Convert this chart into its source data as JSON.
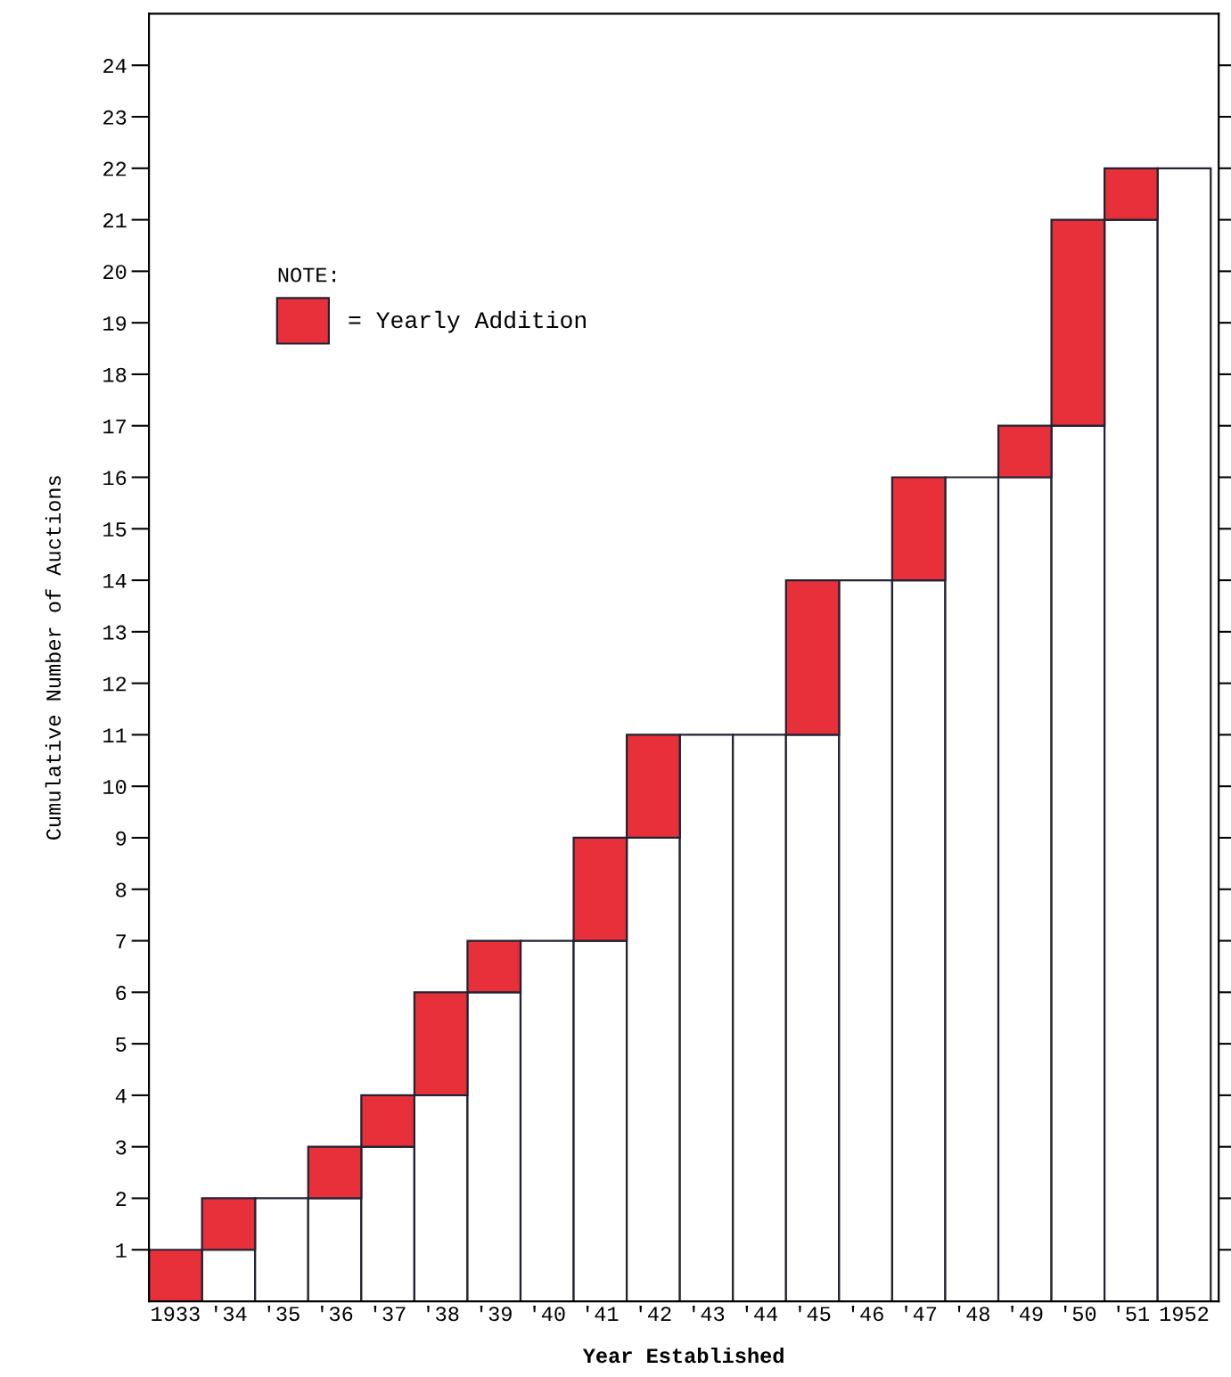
{
  "chart_data": {
    "type": "bar",
    "stacked": true,
    "xlabel": "Year Established",
    "ylabel": "Cumulative Number of Auctions",
    "legend_title": "NOTE:",
    "legend": "top left",
    "grid": false,
    "categories": [
      "1933",
      "'34",
      "'35",
      "'36",
      "'37",
      "'38",
      "'39",
      "'40",
      "'41",
      "'42",
      "'43",
      "'44",
      "'45",
      "'46",
      "'47",
      "'48",
      "'49",
      "'50",
      "'51",
      "1952"
    ],
    "series": [
      {
        "color": "#ffffff",
        "values": [
          0,
          1,
          2,
          2,
          3,
          4,
          6,
          7,
          7,
          9,
          11,
          11,
          11,
          14,
          14,
          16,
          16,
          17,
          21,
          22
        ]
      },
      {
        "name": "= Yearly Addition",
        "color": "#e8303a",
        "values": [
          1,
          1,
          0,
          1,
          1,
          2,
          1,
          0,
          2,
          2,
          0,
          0,
          3,
          0,
          2,
          0,
          1,
          4,
          1,
          0
        ]
      }
    ],
    "ylim": [
      0,
      25
    ],
    "yticks": [
      1,
      2,
      3,
      4,
      5,
      6,
      7,
      8,
      9,
      10,
      11,
      12,
      13,
      14,
      15,
      16,
      17,
      18,
      19,
      20,
      21,
      22,
      23,
      24
    ]
  }
}
